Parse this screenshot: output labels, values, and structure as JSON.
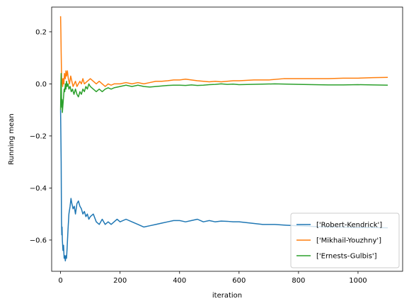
{
  "chart_data": {
    "type": "line",
    "xlabel": "iteration",
    "ylabel": "Running mean",
    "xlim": [
      -30,
      1150
    ],
    "ylim": [
      -0.72,
      0.295
    ],
    "xticks": [
      0,
      200,
      400,
      600,
      800,
      1000
    ],
    "yticks": [
      -0.6,
      -0.4,
      -0.2,
      0.0,
      0.2
    ],
    "xtick_labels": [
      "0",
      "200",
      "400",
      "600",
      "800",
      "1000"
    ],
    "ytick_labels": [
      "−0.6",
      "−0.4",
      "−0.2",
      "0.0",
      "0.2"
    ],
    "legend_position": "lower-right",
    "grid": false,
    "series": [
      {
        "name": "['Robert-Kendrick']",
        "color": "#1f77b4",
        "points": [
          [
            0,
            -0.1
          ],
          [
            2,
            -0.3
          ],
          [
            3,
            -0.52
          ],
          [
            4,
            -0.58
          ],
          [
            5,
            -0.55
          ],
          [
            6,
            -0.6
          ],
          [
            8,
            -0.64
          ],
          [
            10,
            -0.62
          ],
          [
            12,
            -0.67
          ],
          [
            14,
            -0.66
          ],
          [
            16,
            -0.68
          ],
          [
            18,
            -0.66
          ],
          [
            20,
            -0.67
          ],
          [
            22,
            -0.63
          ],
          [
            25,
            -0.56
          ],
          [
            28,
            -0.5
          ],
          [
            32,
            -0.47
          ],
          [
            35,
            -0.44
          ],
          [
            38,
            -0.46
          ],
          [
            42,
            -0.48
          ],
          [
            46,
            -0.47
          ],
          [
            50,
            -0.5
          ],
          [
            55,
            -0.46
          ],
          [
            60,
            -0.45
          ],
          [
            65,
            -0.47
          ],
          [
            70,
            -0.48
          ],
          [
            75,
            -0.5
          ],
          [
            80,
            -0.49
          ],
          [
            85,
            -0.51
          ],
          [
            90,
            -0.5
          ],
          [
            95,
            -0.52
          ],
          [
            100,
            -0.51
          ],
          [
            110,
            -0.5
          ],
          [
            120,
            -0.53
          ],
          [
            130,
            -0.54
          ],
          [
            140,
            -0.52
          ],
          [
            150,
            -0.54
          ],
          [
            160,
            -0.53
          ],
          [
            170,
            -0.54
          ],
          [
            180,
            -0.53
          ],
          [
            190,
            -0.52
          ],
          [
            200,
            -0.53
          ],
          [
            220,
            -0.52
          ],
          [
            240,
            -0.53
          ],
          [
            260,
            -0.54
          ],
          [
            280,
            -0.55
          ],
          [
            300,
            -0.545
          ],
          [
            320,
            -0.54
          ],
          [
            340,
            -0.535
          ],
          [
            360,
            -0.53
          ],
          [
            380,
            -0.525
          ],
          [
            400,
            -0.525
          ],
          [
            420,
            -0.53
          ],
          [
            440,
            -0.525
          ],
          [
            460,
            -0.52
          ],
          [
            480,
            -0.53
          ],
          [
            500,
            -0.525
          ],
          [
            520,
            -0.53
          ],
          [
            540,
            -0.527
          ],
          [
            560,
            -0.528
          ],
          [
            580,
            -0.53
          ],
          [
            600,
            -0.53
          ],
          [
            640,
            -0.535
          ],
          [
            680,
            -0.54
          ],
          [
            720,
            -0.54
          ],
          [
            760,
            -0.543
          ],
          [
            800,
            -0.545
          ],
          [
            850,
            -0.548
          ],
          [
            900,
            -0.55
          ],
          [
            950,
            -0.55
          ],
          [
            1000,
            -0.552
          ],
          [
            1050,
            -0.552
          ],
          [
            1100,
            -0.553
          ]
        ]
      },
      {
        "name": "['Mikhail-Youzhny']",
        "color": "#ff7f0e",
        "points": [
          [
            0,
            0.26
          ],
          [
            1,
            0.2
          ],
          [
            2,
            0.12
          ],
          [
            3,
            0.05
          ],
          [
            4,
            0.0
          ],
          [
            5,
            0.02
          ],
          [
            7,
            -0.01
          ],
          [
            9,
            0.02
          ],
          [
            11,
            0.0
          ],
          [
            13,
            0.04
          ],
          [
            16,
            0.02
          ],
          [
            18,
            0.05
          ],
          [
            20,
            0.03
          ],
          [
            23,
            0.05
          ],
          [
            26,
            0.02
          ],
          [
            30,
            0.0
          ],
          [
            34,
            0.03
          ],
          [
            38,
            0.01
          ],
          [
            42,
            -0.01
          ],
          [
            46,
            0.0
          ],
          [
            50,
            0.01
          ],
          [
            55,
            -0.01
          ],
          [
            60,
            0.0
          ],
          [
            65,
            0.01
          ],
          [
            70,
            0.0
          ],
          [
            75,
            0.02
          ],
          [
            80,
            0.0
          ],
          [
            90,
            0.01
          ],
          [
            100,
            0.02
          ],
          [
            110,
            0.01
          ],
          [
            120,
            0.0
          ],
          [
            130,
            0.01
          ],
          [
            140,
            0.0
          ],
          [
            150,
            -0.01
          ],
          [
            160,
            0.0
          ],
          [
            170,
            -0.005
          ],
          [
            180,
            0.0
          ],
          [
            200,
            0.0
          ],
          [
            220,
            0.005
          ],
          [
            240,
            0.0
          ],
          [
            260,
            0.005
          ],
          [
            280,
            0.0
          ],
          [
            300,
            0.005
          ],
          [
            320,
            0.01
          ],
          [
            340,
            0.01
          ],
          [
            360,
            0.012
          ],
          [
            380,
            0.015
          ],
          [
            400,
            0.015
          ],
          [
            420,
            0.018
          ],
          [
            440,
            0.015
          ],
          [
            460,
            0.012
          ],
          [
            480,
            0.01
          ],
          [
            500,
            0.008
          ],
          [
            520,
            0.01
          ],
          [
            540,
            0.008
          ],
          [
            560,
            0.01
          ],
          [
            580,
            0.012
          ],
          [
            600,
            0.012
          ],
          [
            650,
            0.015
          ],
          [
            700,
            0.015
          ],
          [
            750,
            0.02
          ],
          [
            800,
            0.02
          ],
          [
            850,
            0.02
          ],
          [
            900,
            0.02
          ],
          [
            950,
            0.022
          ],
          [
            1000,
            0.022
          ],
          [
            1050,
            0.024
          ],
          [
            1100,
            0.025
          ]
        ]
      },
      {
        "name": "['Ernests-Gulbis']",
        "color": "#2ca02c",
        "points": [
          [
            0,
            -0.1
          ],
          [
            1,
            0.0
          ],
          [
            2,
            0.04
          ],
          [
            3,
            -0.05
          ],
          [
            4,
            -0.09
          ],
          [
            5,
            -0.06
          ],
          [
            6,
            -0.11
          ],
          [
            8,
            -0.08
          ],
          [
            10,
            -0.05
          ],
          [
            12,
            -0.02
          ],
          [
            14,
            -0.03
          ],
          [
            16,
            0.0
          ],
          [
            18,
            -0.02
          ],
          [
            20,
            0.01
          ],
          [
            22,
            -0.01
          ],
          [
            25,
            0.0
          ],
          [
            28,
            -0.02
          ],
          [
            32,
            -0.01
          ],
          [
            36,
            -0.03
          ],
          [
            40,
            -0.02
          ],
          [
            45,
            -0.04
          ],
          [
            50,
            -0.02
          ],
          [
            55,
            -0.04
          ],
          [
            60,
            -0.05
          ],
          [
            65,
            -0.03
          ],
          [
            70,
            -0.04
          ],
          [
            75,
            -0.02
          ],
          [
            80,
            -0.03
          ],
          [
            85,
            -0.01
          ],
          [
            90,
            -0.02
          ],
          [
            95,
            0.0
          ],
          [
            100,
            -0.01
          ],
          [
            110,
            -0.02
          ],
          [
            120,
            -0.03
          ],
          [
            130,
            -0.02
          ],
          [
            140,
            -0.03
          ],
          [
            150,
            -0.02
          ],
          [
            160,
            -0.015
          ],
          [
            170,
            -0.02
          ],
          [
            180,
            -0.015
          ],
          [
            200,
            -0.01
          ],
          [
            220,
            -0.005
          ],
          [
            240,
            -0.01
          ],
          [
            260,
            -0.005
          ],
          [
            280,
            -0.01
          ],
          [
            300,
            -0.012
          ],
          [
            320,
            -0.01
          ],
          [
            340,
            -0.008
          ],
          [
            360,
            -0.006
          ],
          [
            380,
            -0.005
          ],
          [
            400,
            -0.005
          ],
          [
            420,
            -0.006
          ],
          [
            440,
            -0.004
          ],
          [
            460,
            -0.006
          ],
          [
            480,
            -0.005
          ],
          [
            500,
            -0.003
          ],
          [
            520,
            -0.002
          ],
          [
            540,
            0.0
          ],
          [
            560,
            -0.002
          ],
          [
            580,
            -0.001
          ],
          [
            600,
            -0.003
          ],
          [
            640,
            -0.002
          ],
          [
            680,
            -0.001
          ],
          [
            720,
            0.0
          ],
          [
            760,
            -0.001
          ],
          [
            800,
            -0.002
          ],
          [
            850,
            -0.003
          ],
          [
            900,
            -0.004
          ],
          [
            950,
            -0.004
          ],
          [
            1000,
            -0.003
          ],
          [
            1050,
            -0.004
          ],
          [
            1100,
            -0.005
          ]
        ]
      }
    ]
  }
}
